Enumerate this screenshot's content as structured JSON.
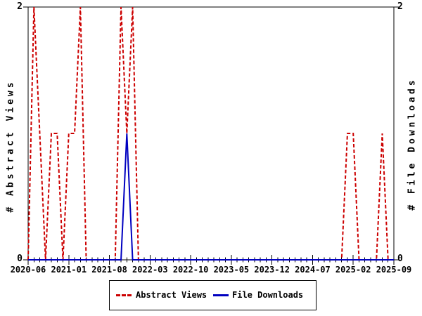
{
  "y_axis_left": {
    "title": "# Abstract Views",
    "top_label": "2",
    "bottom_label": "0"
  },
  "y_axis_right": {
    "title": "# File Downloads",
    "top_label": "2",
    "bottom_label": "0"
  },
  "colors": {
    "abstract_views": "#cc0000",
    "file_downloads": "#0000c0",
    "axis": "#000000",
    "background": "#ffffff"
  },
  "legend": {
    "position": "bottom-center",
    "items": [
      {
        "label": "Abstract Views",
        "color": "#cc0000",
        "line_style": "dashed"
      },
      {
        "label": "File Downloads",
        "color": "#0000c0",
        "line_style": "solid"
      }
    ]
  },
  "chart_data": {
    "type": "line",
    "title": "",
    "xlabel": "",
    "ylabel_left": "# Abstract Views",
    "ylabel_right": "# File Downloads",
    "ylim": [
      0,
      2
    ],
    "grid": false,
    "legend_position": "bottom-center",
    "x_tick_labels": [
      "2020-06",
      "2021-01",
      "2021-08",
      "2022-03",
      "2022-10",
      "2023-05",
      "2023-12",
      "2024-07",
      "2025-02",
      "2025-09"
    ],
    "x": [
      "2020-06",
      "2020-07",
      "2020-08",
      "2020-09",
      "2020-10",
      "2020-11",
      "2020-12",
      "2021-01",
      "2021-02",
      "2021-03",
      "2021-04",
      "2021-05",
      "2021-06",
      "2021-07",
      "2021-08",
      "2021-09",
      "2021-10",
      "2021-11",
      "2021-12",
      "2022-01",
      "2022-02",
      "2022-03",
      "2022-04",
      "2022-05",
      "2022-06",
      "2022-07",
      "2022-08",
      "2022-09",
      "2022-10",
      "2022-11",
      "2022-12",
      "2023-01",
      "2023-02",
      "2023-03",
      "2023-04",
      "2023-05",
      "2023-06",
      "2023-07",
      "2023-08",
      "2023-09",
      "2023-10",
      "2023-11",
      "2023-12",
      "2024-01",
      "2024-02",
      "2024-03",
      "2024-04",
      "2024-05",
      "2024-06",
      "2024-07",
      "2024-08",
      "2024-09",
      "2024-10",
      "2024-11",
      "2024-12",
      "2025-01",
      "2025-02",
      "2025-03",
      "2025-04",
      "2025-05",
      "2025-06",
      "2025-07",
      "2025-08",
      "2025-09"
    ],
    "series": [
      {
        "name": "Abstract Views",
        "axis": "left",
        "color": "#cc0000",
        "line_style": "dashed",
        "values": [
          0,
          2,
          1,
          0,
          1,
          1,
          0,
          1,
          1,
          2,
          0,
          0,
          0,
          0,
          0,
          0,
          2,
          1,
          2,
          0,
          0,
          0,
          0,
          0,
          0,
          0,
          0,
          0,
          0,
          0,
          0,
          0,
          0,
          0,
          0,
          0,
          0,
          0,
          0,
          0,
          0,
          0,
          0,
          0,
          0,
          0,
          0,
          0,
          0,
          0,
          0,
          0,
          0,
          0,
          0,
          1,
          1,
          0,
          0,
          0,
          0,
          1,
          0,
          0
        ]
      },
      {
        "name": "File Downloads",
        "axis": "right",
        "color": "#0000c0",
        "line_style": "solid",
        "values": [
          0,
          0,
          0,
          0,
          0,
          0,
          0,
          0,
          0,
          0,
          0,
          0,
          0,
          0,
          0,
          0,
          0,
          1,
          0,
          0,
          0,
          0,
          0,
          0,
          0,
          0,
          0,
          0,
          0,
          0,
          0,
          0,
          0,
          0,
          0,
          0,
          0,
          0,
          0,
          0,
          0,
          0,
          0,
          0,
          0,
          0,
          0,
          0,
          0,
          0,
          0,
          0,
          0,
          0,
          0,
          0,
          0,
          0,
          0,
          0,
          0,
          0,
          0,
          0
        ]
      }
    ]
  }
}
